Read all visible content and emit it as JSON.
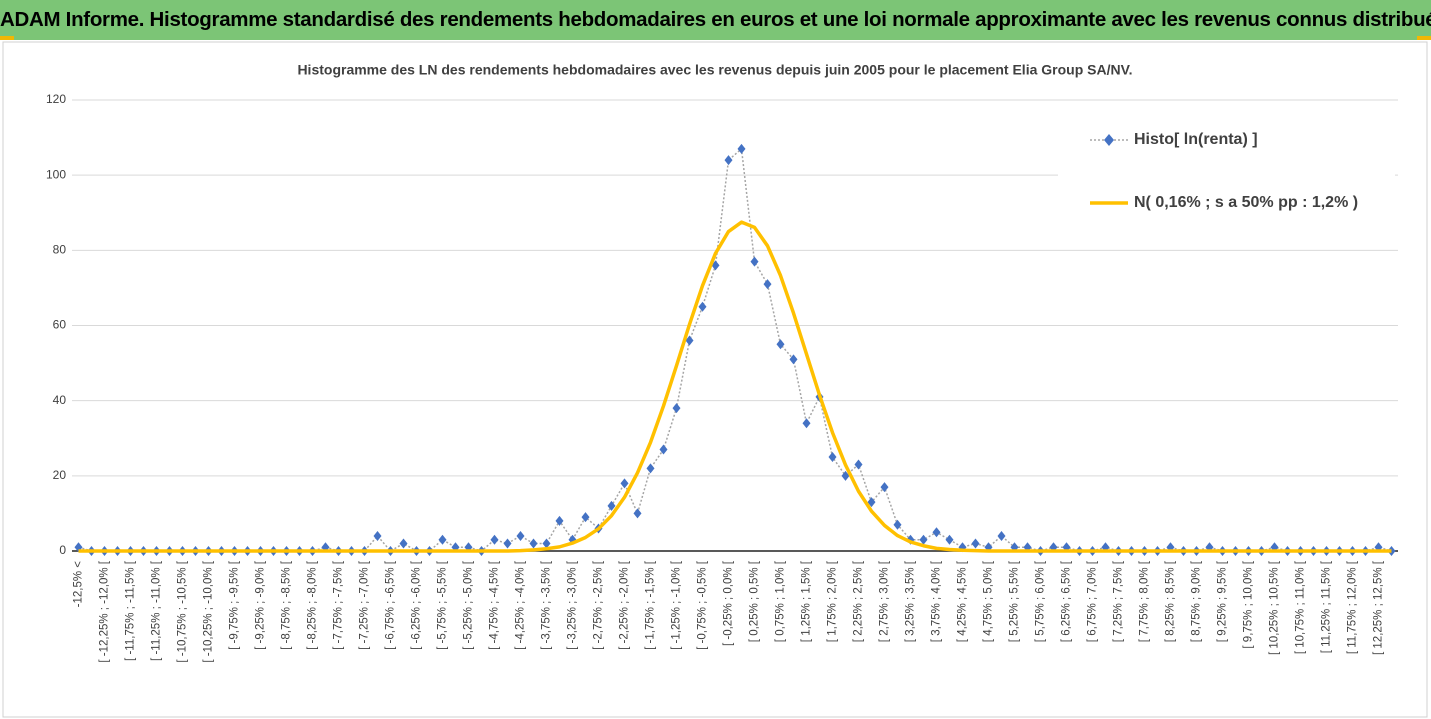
{
  "chart_data": {
    "type": "line",
    "suptitle": "ADAM Informe. Histogramme standardisé des rendements hebdomadaires en euros et une loi normale approximante avec les revenus connus distribués",
    "title": "Histogramme  des LN des rendements hebdomadaires avec les revenus depuis juin 2005  pour le placement Elia  Group SA/NV.",
    "categories": [
      "-12,5% <",
      null,
      "[ -12,25% ; -12,0% [",
      null,
      "[ -11,75% ; -11,5% [",
      null,
      "[ -11,25% ; -11,0% [",
      null,
      "[ -10,75% ; -10,5% [",
      null,
      "[ -10,25% ; -10,0% [",
      null,
      "[ -9,75% ; -9,5% [",
      null,
      "[ -9,25% ; -9,0% [",
      null,
      "[ -8,75% ; -8,5% [",
      null,
      "[ -8,25% ; -8,0% [",
      null,
      "[ -7,75% ; -7,5% [",
      null,
      "[ -7,25% ; -7,0% [",
      null,
      "[ -6,75% ; -6,5% [",
      null,
      "[ -6,25% ; -6,0% [",
      null,
      "[ -5,75% ; -5,5% [",
      null,
      "[ -5,25% ; -5,0% [",
      null,
      "[ -4,75% ; -4,5% [",
      null,
      "[ -4,25% ; -4,0% [",
      null,
      "[ -3,75% ; -3,5% [",
      null,
      "[ -3,25% ; -3,0% [",
      null,
      "[ -2,75% ; -2,5% [",
      null,
      "[ -2,25% ; -2,0% [",
      null,
      "[ -1,75% ; -1,5% [",
      null,
      "[ -1,25% ; -1,0% [",
      null,
      "[ -0,75% ; -0,5% [",
      null,
      "[ -0,25% ; 0,0% [",
      null,
      "[ 0,25% ; 0,5% [",
      null,
      "[ 0,75% ; 1,0% [",
      null,
      "[ 1,25% ; 1,5% [",
      null,
      "[ 1,75% ; 2,0% [",
      null,
      "[ 2,25% ; 2,5% [",
      null,
      "[ 2,75% ; 3,0% [",
      null,
      "[ 3,25% ; 3,5% [",
      null,
      "[ 3,75% ; 4,0% [",
      null,
      "[ 4,25% ; 4,5% [",
      null,
      "[ 4,75% ; 5,0% [",
      null,
      "[ 5,25% ; 5,5% [",
      null,
      "[ 5,75% ; 6,0% [",
      null,
      "[ 6,25% ; 6,5% [",
      null,
      "[ 6,75% ; 7,0% [",
      null,
      "[ 7,25% ; 7,5% [",
      null,
      "[ 7,75% ; 8,0% [",
      null,
      "[ 8,25% ; 8,5% [",
      null,
      "[ 8,75% ; 9,0% [",
      null,
      "[ 9,25% ; 9,5% [",
      null,
      "[ 9,75% ; 10,0% [",
      null,
      "[ 10,25% ; 10,5% [",
      null,
      "[ 10,75% ; 11,0% [",
      null,
      "[ 11,25% ; 11,5% [",
      null,
      "[ 11,75% ; 12,0% [",
      null,
      "[ 12,25% ; 12,5% [",
      null
    ],
    "series": [
      {
        "name": "Histo[ ln(renta) ]",
        "color": "#4472c4",
        "line_color": "#a5a5a5",
        "line_dash": "dotted",
        "marker": "diamond",
        "values": [
          1,
          0,
          0,
          0,
          0,
          0,
          0,
          0,
          0,
          0,
          0,
          0,
          0,
          0,
          0,
          0,
          0,
          0,
          0,
          1,
          0,
          0,
          0,
          4,
          0,
          2,
          0,
          0,
          3,
          1,
          1,
          0,
          3,
          2,
          4,
          2,
          2,
          8,
          3,
          9,
          6,
          12,
          18,
          10,
          22,
          27,
          38,
          56,
          65,
          76,
          104,
          107,
          77,
          71,
          55,
          51,
          34,
          41,
          25,
          20,
          23,
          13,
          17,
          7,
          3,
          3,
          5,
          3,
          1,
          2,
          1,
          4,
          1,
          1,
          0,
          1,
          1,
          0,
          0,
          1,
          0,
          0,
          0,
          0,
          1,
          0,
          0,
          1,
          0,
          0,
          0,
          0,
          1,
          0,
          0,
          0,
          0,
          0,
          0,
          0,
          1,
          0
        ]
      },
      {
        "name": "N( 0,16% ; s a 50% pp : 1,2% )",
        "color": "#ffc000",
        "line_color": "#ffc000",
        "line_dash": "solid",
        "values": [
          0,
          0,
          0,
          0,
          0,
          0,
          0,
          0,
          0,
          0,
          0,
          0,
          0,
          0,
          0,
          0,
          0,
          0,
          0,
          0,
          0,
          0,
          0,
          0,
          0,
          0,
          0,
          0,
          0,
          0,
          0,
          0,
          0,
          0,
          0.1,
          0.3,
          0.6,
          1.1,
          2.1,
          3.6,
          5.9,
          9.4,
          14.3,
          20.8,
          28.9,
          38.6,
          49.3,
          60.3,
          70.6,
          79.2,
          85.0,
          87.5,
          86.1,
          81.2,
          73.3,
          63.3,
          52.4,
          41.5,
          31.5,
          22.9,
          15.9,
          10.6,
          6.8,
          4.1,
          2.4,
          1.4,
          0.7,
          0.4,
          0.2,
          0.1,
          0,
          0,
          0,
          0,
          0,
          0,
          0,
          0,
          0,
          0,
          0,
          0,
          0,
          0,
          0,
          0,
          0,
          0,
          0,
          0,
          0,
          0,
          0,
          0,
          0,
          0,
          0,
          0,
          0,
          0,
          0,
          0
        ]
      }
    ],
    "ylim": [
      0,
      120
    ],
    "yticks": [
      0,
      20,
      40,
      60,
      80,
      100,
      120
    ],
    "grid": true,
    "legend": "top-right"
  }
}
